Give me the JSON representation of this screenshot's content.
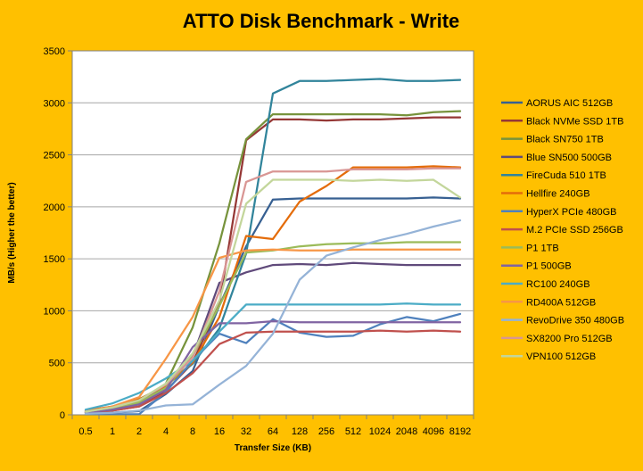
{
  "colors": {
    "background": "#FFC000",
    "plot_area": "#FFFFFF",
    "gridline": "#A6A6A6"
  },
  "chart_data": {
    "type": "line",
    "title": "ATTO Disk Benchmark - Write",
    "xlabel": "Transfer Size (KB)",
    "ylabel": "MB/s (Higher the better)",
    "ylim": [
      0,
      3500
    ],
    "yticks": [
      0,
      500,
      1000,
      1500,
      2000,
      2500,
      3000,
      3500
    ],
    "categories": [
      "0.5",
      "1",
      "2",
      "4",
      "8",
      "16",
      "32",
      "64",
      "128",
      "256",
      "512",
      "1024",
      "2048",
      "4096",
      "8192"
    ],
    "grid": "horizontal",
    "legend_position": "right",
    "series": [
      {
        "name": "AORUS AIC 512GB",
        "color": "#376092",
        "values": [
          10,
          20,
          35,
          200,
          420,
          1050,
          1620,
          2070,
          2080,
          2080,
          2080,
          2080,
          2080,
          2090,
          2080
        ]
      },
      {
        "name": "Black NVMe SSD 1TB",
        "color": "#953735",
        "values": [
          20,
          40,
          80,
          230,
          500,
          1070,
          2640,
          2840,
          2840,
          2830,
          2840,
          2840,
          2850,
          2860,
          2860
        ]
      },
      {
        "name": "Black SN750 1TB",
        "color": "#77933C",
        "values": [
          25,
          50,
          100,
          300,
          840,
          1650,
          2650,
          2890,
          2890,
          2890,
          2890,
          2890,
          2880,
          2910,
          2920
        ]
      },
      {
        "name": "Blue SN500 500GB",
        "color": "#604A7B",
        "values": [
          25,
          60,
          120,
          260,
          560,
          1270,
          1370,
          1440,
          1450,
          1440,
          1460,
          1450,
          1440,
          1440,
          1440
        ]
      },
      {
        "name": "FireCuda 510 1TB",
        "color": "#31849B",
        "values": [
          40,
          80,
          150,
          280,
          490,
          830,
          1550,
          3090,
          3210,
          3210,
          3220,
          3230,
          3210,
          3210,
          3220
        ]
      },
      {
        "name": "Hellfire 240GB",
        "color": "#E46C0A",
        "values": [
          40,
          80,
          150,
          280,
          500,
          940,
          1720,
          1690,
          2050,
          2200,
          2380,
          2380,
          2380,
          2390,
          2380
        ]
      },
      {
        "name": "HyperX PCIe 480GB",
        "color": "#4F81BD",
        "values": [
          5,
          5,
          5,
          220,
          520,
          780,
          690,
          920,
          790,
          750,
          760,
          870,
          940,
          900,
          970
        ]
      },
      {
        "name": "M.2 PCIe SSD 256GB",
        "color": "#C0504D",
        "values": [
          20,
          40,
          80,
          210,
          400,
          680,
          790,
          800,
          800,
          800,
          800,
          810,
          800,
          810,
          800
        ]
      },
      {
        "name": "P1 1TB",
        "color": "#9BBB59",
        "values": [
          30,
          60,
          120,
          260,
          560,
          1050,
          1560,
          1580,
          1620,
          1640,
          1650,
          1650,
          1660,
          1660,
          1660
        ]
      },
      {
        "name": "P1 500GB",
        "color": "#8064A2",
        "values": [
          20,
          50,
          100,
          240,
          650,
          880,
          880,
          900,
          890,
          890,
          890,
          890,
          890,
          890,
          890
        ]
      },
      {
        "name": "RC100 240GB",
        "color": "#4BACC6",
        "values": [
          50,
          110,
          210,
          350,
          520,
          800,
          1060,
          1060,
          1060,
          1060,
          1060,
          1060,
          1070,
          1060,
          1060
        ]
      },
      {
        "name": "RD400A 512GB",
        "color": "#F79646",
        "values": [
          30,
          80,
          170,
          540,
          940,
          1510,
          1580,
          1590,
          1580,
          1580,
          1590,
          1590,
          1590,
          1590,
          1590
        ]
      },
      {
        "name": "RevoDrive 350 480GB",
        "color": "#95B3D7",
        "values": [
          10,
          20,
          40,
          90,
          100,
          290,
          470,
          780,
          1300,
          1530,
          1610,
          1680,
          1740,
          1810,
          1870
        ]
      },
      {
        "name": "SX8200 Pro 512GB",
        "color": "#D99694",
        "values": [
          30,
          70,
          140,
          290,
          550,
          1190,
          2240,
          2340,
          2340,
          2340,
          2360,
          2360,
          2360,
          2370,
          2370
        ]
      },
      {
        "name": "VPN100 512GB",
        "color": "#C3D69B",
        "values": [
          30,
          70,
          140,
          300,
          590,
          1100,
          2030,
          2260,
          2260,
          2260,
          2250,
          2260,
          2250,
          2260,
          2090
        ]
      }
    ]
  }
}
